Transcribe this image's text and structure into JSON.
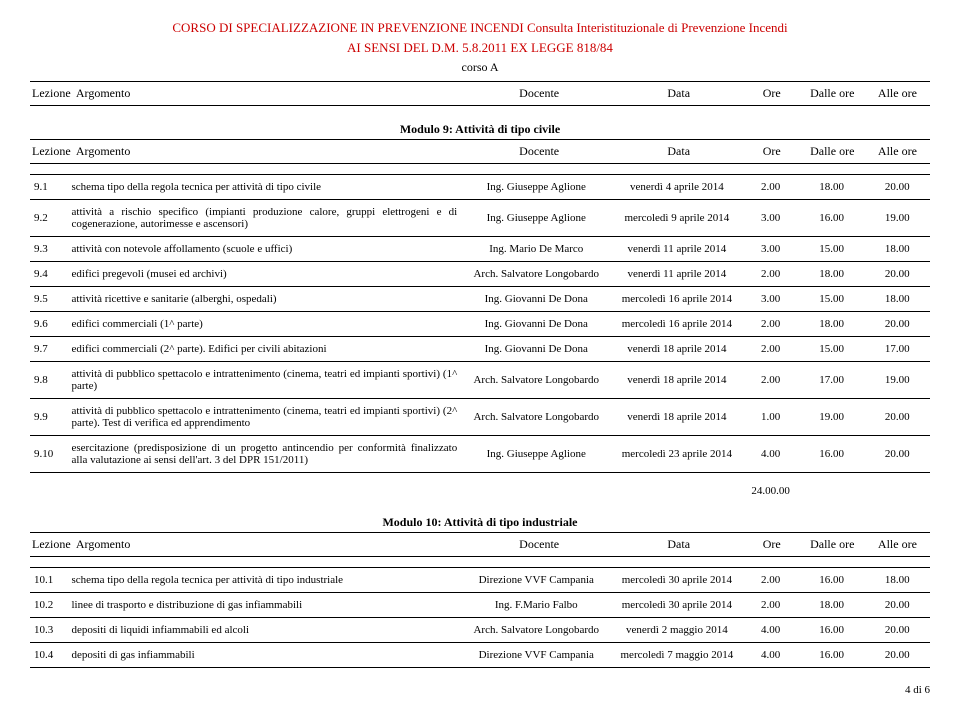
{
  "header": {
    "line1": "CORSO DI SPECIALIZZAZIONE IN PREVENZIONE INCENDI Consulta Interistituzionale di Prevenzione Incendi",
    "line2": "AI SENSI DEL D.M. 5.8.2011 EX LEGGE 818/84",
    "course": "corso A"
  },
  "columns": {
    "lezione": "Lezione",
    "argomento": "Argomento",
    "docente": "Docente",
    "data": "Data",
    "ore": "Ore",
    "dalle": "Dalle ore",
    "alle": "Alle ore"
  },
  "module9": {
    "title": "Modulo 9: Attività di tipo civile",
    "rows": [
      {
        "n": "9.1",
        "arg": "schema tipo della regola tecnica per attività di tipo civile",
        "doc": "Ing. Giuseppe Aglione",
        "data": "venerdì 4 aprile 2014",
        "ore": "2.00",
        "dalle": "18.00",
        "alle": "20.00"
      },
      {
        "n": "9.2",
        "arg": "attività a rischio specifico (impianti produzione calore, gruppi elettrogeni e di cogenerazione, autorimesse e ascensori)",
        "doc": "Ing. Giuseppe Aglione",
        "data": "mercoledì 9 aprile 2014",
        "ore": "3.00",
        "dalle": "16.00",
        "alle": "19.00"
      },
      {
        "n": "9.3",
        "arg": "attività con notevole affollamento (scuole e uffici)",
        "doc": "Ing. Mario De Marco",
        "data": "venerdì 11 aprile 2014",
        "ore": "3.00",
        "dalle": "15.00",
        "alle": "18.00"
      },
      {
        "n": "9.4",
        "arg": "edifici pregevoli (musei ed archivi)",
        "doc": "Arch. Salvatore Longobardo",
        "data": "venerdì 11 aprile 2014",
        "ore": "2.00",
        "dalle": "18.00",
        "alle": "20.00"
      },
      {
        "n": "9.5",
        "arg": "attività ricettive e sanitarie (alberghi, ospedali)",
        "doc": "Ing. Giovanni De Dona",
        "data": "mercoledì 16 aprile 2014",
        "ore": "3.00",
        "dalle": "15.00",
        "alle": "18.00"
      },
      {
        "n": "9.6",
        "arg": "edifici commerciali (1^ parte)",
        "doc": "Ing. Giovanni De Dona",
        "data": "mercoledì 16 aprile 2014",
        "ore": "2.00",
        "dalle": "18.00",
        "alle": "20.00"
      },
      {
        "n": "9.7",
        "arg": "edifici commerciali (2^ parte). Edifici per civili abitazioni",
        "doc": "Ing. Giovanni De Dona",
        "data": "venerdì 18 aprile 2014",
        "ore": "2.00",
        "dalle": "15.00",
        "alle": "17.00"
      },
      {
        "n": "9.8",
        "arg": "attività di pubblico spettacolo e intrattenimento (cinema, teatri ed impianti sportivi) (1^ parte)",
        "doc": "Arch. Salvatore Longobardo",
        "data": "venerdì 18 aprile 2014",
        "ore": "2.00",
        "dalle": "17.00",
        "alle": "19.00"
      },
      {
        "n": "9.9",
        "arg": "attività di pubblico spettacolo e intrattenimento (cinema, teatri ed impianti sportivi) (2^ parte). Test di verifica ed apprendimento",
        "doc": "Arch. Salvatore Longobardo",
        "data": "venerdì 18 aprile 2014",
        "ore": "1.00",
        "dalle": "19.00",
        "alle": "20.00"
      },
      {
        "n": "9.10",
        "arg": "esercitazione (predisposizione di un progetto antincendio per conformità finalizzato alla valutazione ai sensi dell'art. 3 del DPR 151/2011)",
        "doc": "Ing. Giuseppe Aglione",
        "data": "mercoledì 23 aprile 2014",
        "ore": "4.00",
        "dalle": "16.00",
        "alle": "20.00"
      }
    ],
    "total": "24.00.00"
  },
  "module10": {
    "title": "Modulo 10: Attività di tipo industriale",
    "rows": [
      {
        "n": "10.1",
        "arg": "schema tipo della regola tecnica per attività di tipo industriale",
        "doc": "Direzione VVF Campania",
        "data": "mercoledì 30 aprile 2014",
        "ore": "2.00",
        "dalle": "16.00",
        "alle": "18.00"
      },
      {
        "n": "10.2",
        "arg": "linee di trasporto e distribuzione di gas infiammabili",
        "doc": "Ing. F.Mario Falbo",
        "data": "mercoledì 30 aprile 2014",
        "ore": "2.00",
        "dalle": "18.00",
        "alle": "20.00"
      },
      {
        "n": "10.3",
        "arg": "depositi di liquidi infiammabili ed alcoli",
        "doc": "Arch. Salvatore Longobardo",
        "data": "venerdì 2 maggio 2014",
        "ore": "4.00",
        "dalle": "16.00",
        "alle": "20.00"
      },
      {
        "n": "10.4",
        "arg": "depositi di gas infiammabili",
        "doc": "Direzione VVF Campania",
        "data": "mercoledì 7 maggio 2014",
        "ore": "4.00",
        "dalle": "16.00",
        "alle": "20.00"
      }
    ]
  },
  "footer": "4 di 6",
  "colors": {
    "header_color": "#cc0000",
    "text_color": "#000000",
    "background": "#ffffff"
  }
}
